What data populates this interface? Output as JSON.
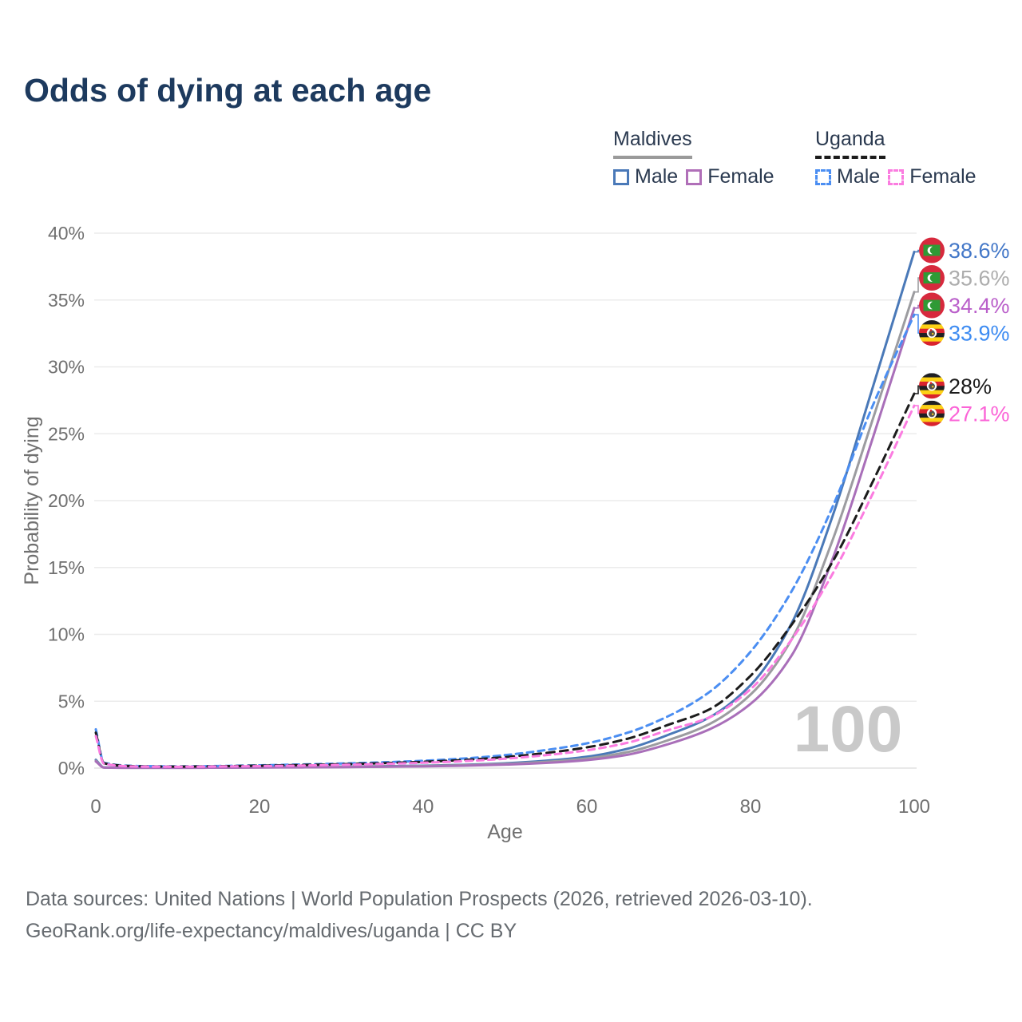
{
  "page": {
    "title": "Odds of dying at each age",
    "watermark": "100"
  },
  "legend": {
    "groups": [
      {
        "id": "maldives",
        "label": "Maldives",
        "line_style": "solid",
        "underline_color": "#9a9a9a",
        "items": [
          {
            "id": "male",
            "label": "Male",
            "color": "#4a79b8"
          },
          {
            "id": "female",
            "label": "Female",
            "color": "#b06fb8"
          }
        ]
      },
      {
        "id": "uganda",
        "label": "Uganda",
        "line_style": "dashed",
        "underline_color": "#1b1b1b",
        "items": [
          {
            "id": "male",
            "label": "Male",
            "color": "#4b8ef2"
          },
          {
            "id": "female",
            "label": "Female",
            "color": "#fb7ce0"
          }
        ]
      }
    ]
  },
  "chart_data": {
    "type": "line",
    "title": "Odds of dying at each age",
    "xlabel": "Age",
    "ylabel": "Probability of dying",
    "x_ticks": [
      0,
      20,
      40,
      60,
      80,
      100
    ],
    "y_ticks_percent": [
      0,
      5,
      10,
      15,
      20,
      25,
      30,
      35,
      40
    ],
    "xlim": [
      0,
      100
    ],
    "ylim_percent": [
      0,
      40
    ],
    "grid": true,
    "legend_position": "top-right",
    "watermark": "100",
    "ages": [
      0,
      1,
      5,
      10,
      15,
      20,
      25,
      30,
      35,
      40,
      45,
      50,
      55,
      60,
      65,
      70,
      75,
      80,
      85,
      90,
      95,
      100
    ],
    "series": [
      {
        "id": "maldives-male",
        "name": "Maldives male",
        "country": "Maldives",
        "sex": "male",
        "style": "solid",
        "color": "#4a79b8",
        "flag": "maldives",
        "end_label": "38.6%",
        "end_value": 38.6,
        "end_label_color": "#4478c8",
        "values": [
          0.62,
          0.05,
          0.03,
          0.03,
          0.05,
          0.07,
          0.09,
          0.11,
          0.14,
          0.18,
          0.25,
          0.36,
          0.55,
          0.85,
          1.45,
          2.5,
          3.8,
          6.2,
          10.8,
          18.8,
          28.6,
          38.6
        ]
      },
      {
        "id": "maldives-both-sexes",
        "name": "Maldives both sexes",
        "country": "Maldives",
        "sex": "both",
        "style": "solid",
        "color": "#9c9ca0",
        "flag": "maldives",
        "end_label": "35.6%",
        "end_value": 35.6,
        "end_label_color": "#adadad",
        "values": [
          0.55,
          0.045,
          0.025,
          0.025,
          0.04,
          0.055,
          0.07,
          0.09,
          0.12,
          0.16,
          0.22,
          0.31,
          0.47,
          0.72,
          1.2,
          2.1,
          3.3,
          5.5,
          9.6,
          17.0,
          26.2,
          35.6
        ]
      },
      {
        "id": "maldives-female",
        "name": "Maldives female",
        "country": "Maldives",
        "sex": "female",
        "style": "solid",
        "color": "#a96fb9",
        "flag": "maldives",
        "end_label": "34.4%",
        "end_value": 34.4,
        "end_label_color": "#ba5fca",
        "values": [
          0.5,
          0.04,
          0.02,
          0.02,
          0.03,
          0.045,
          0.055,
          0.07,
          0.1,
          0.13,
          0.18,
          0.26,
          0.39,
          0.6,
          1.0,
          1.8,
          2.9,
          4.8,
          8.4,
          15.6,
          24.8,
          34.4
        ]
      },
      {
        "id": "uganda-male",
        "name": "Uganda male",
        "country": "Uganda",
        "sex": "male",
        "style": "dashed",
        "color": "#4b8ef2",
        "flag": "uganda",
        "end_label": "33.9%",
        "end_value": 33.9,
        "end_label_color": "#3e8cf2",
        "values": [
          2.9,
          0.4,
          0.16,
          0.13,
          0.16,
          0.21,
          0.27,
          0.34,
          0.43,
          0.55,
          0.72,
          0.97,
          1.35,
          1.85,
          2.65,
          3.9,
          5.7,
          8.7,
          13.2,
          19.5,
          27.2,
          33.9
        ]
      },
      {
        "id": "uganda-both-sexes",
        "name": "Uganda both sexes",
        "country": "Uganda",
        "sex": "both",
        "style": "dashed",
        "color": "#1c1c1c",
        "flag": "uganda",
        "end_label": "28%",
        "end_value": 28,
        "end_label_color": "#1c1c1c",
        "values": [
          2.65,
          0.36,
          0.14,
          0.11,
          0.14,
          0.18,
          0.23,
          0.29,
          0.37,
          0.47,
          0.61,
          0.82,
          1.13,
          1.55,
          2.2,
          3.25,
          4.4,
          6.9,
          10.7,
          15.4,
          21.5,
          28.0
        ]
      },
      {
        "id": "uganda-female",
        "name": "Uganda female",
        "country": "Uganda",
        "sex": "female",
        "style": "dashed",
        "color": "#fb7ce0",
        "flag": "uganda",
        "end_label": "27.1%",
        "end_value": 27.1,
        "end_label_color": "#fb64d7",
        "values": [
          2.4,
          0.33,
          0.12,
          0.1,
          0.12,
          0.15,
          0.19,
          0.24,
          0.31,
          0.4,
          0.52,
          0.7,
          0.97,
          1.33,
          1.9,
          2.85,
          3.8,
          5.9,
          9.6,
          14.5,
          20.6,
          27.1
        ]
      }
    ]
  },
  "footer": {
    "line1": "Data sources: United Nations | World Population Prospects (2026, retrieved 2026-03-10).",
    "line2": "GeoRank.org/life-expectancy/maldives/uganda | CC BY"
  }
}
